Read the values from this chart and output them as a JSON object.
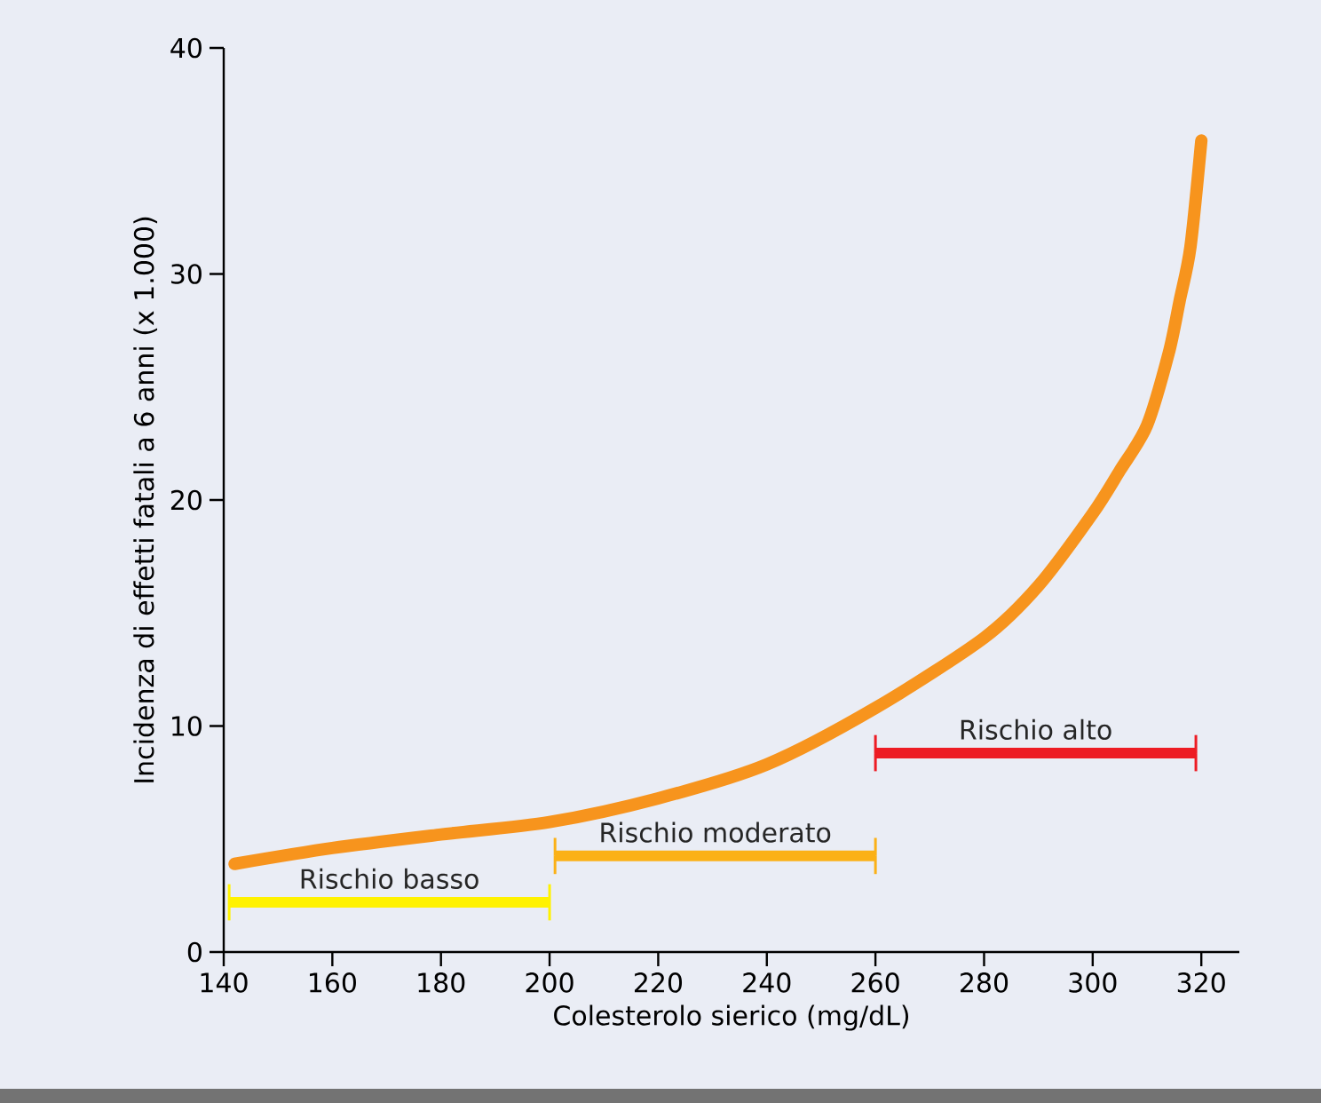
{
  "chart_data": {
    "type": "line",
    "xlabel": "Colesterolo sierico (mg/dL)",
    "ylabel": "Incidenza di effetti fatali a 6 anni (x 1.000)",
    "xlim": [
      140,
      327
    ],
    "ylim": [
      0,
      40
    ],
    "xticks": [
      140,
      160,
      180,
      200,
      220,
      240,
      260,
      280,
      300,
      320
    ],
    "yticks": [
      0,
      10,
      20,
      30,
      40
    ],
    "grid": false,
    "legend": false,
    "marker": "none",
    "series": [
      {
        "color": "#f7941d",
        "x": [
          142,
          160,
          180,
          200,
          220,
          240,
          260,
          280,
          290,
          300,
          305,
          310,
          314,
          316,
          318,
          320
        ],
        "values": [
          3.9,
          4.6,
          5.2,
          5.75,
          6.8,
          8.3,
          10.8,
          13.9,
          16.2,
          19.4,
          21.3,
          23.3,
          26.5,
          28.8,
          31.2,
          35.9
        ]
      },
      {
        "name": "Rischio basso",
        "color": "#fff200",
        "x": [
          141,
          200
        ],
        "values": [
          2.2,
          2.2
        ],
        "errors": [
          0.8,
          0.8
        ]
      },
      {
        "name": "Rischio moderato",
        "color": "#fbb117",
        "x": [
          201,
          260
        ],
        "values": [
          4.25,
          4.25
        ],
        "errors": [
          0.8,
          0.8
        ]
      },
      {
        "name": "Rischio alto",
        "color": "#ed1c24",
        "x": [
          260,
          319
        ],
        "values": [
          8.8,
          8.8
        ],
        "errors": [
          0.8,
          0.8
        ]
      }
    ]
  }
}
